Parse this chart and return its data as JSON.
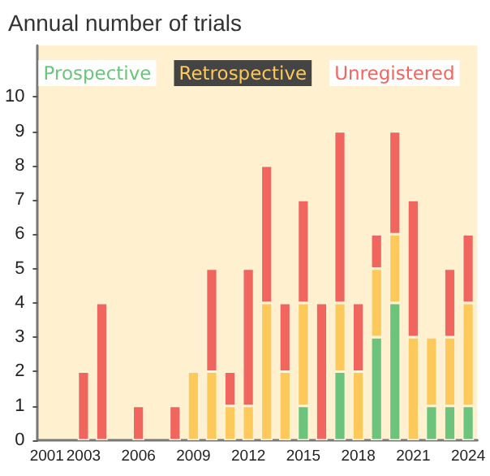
{
  "chart_data": {
    "type": "bar",
    "title": "Annual number of trials",
    "stacked": true,
    "legend": "top",
    "grid": false,
    "categories": [
      "2001",
      null,
      "2003",
      null,
      null,
      "2006",
      null,
      null,
      "2009",
      null,
      null,
      "2012",
      null,
      null,
      "2015",
      null,
      null,
      "2018",
      null,
      null,
      "2021",
      null,
      null,
      "2024"
    ],
    "ylim": [
      0,
      11.5
    ],
    "yticks": [
      0,
      1,
      2,
      3,
      4,
      5,
      6,
      7,
      8,
      9,
      10
    ],
    "series": [
      {
        "name": "Prospective",
        "color": "#6cc47c",
        "values": [
          null,
          null,
          null,
          null,
          null,
          null,
          null,
          null,
          null,
          null,
          null,
          null,
          null,
          null,
          1,
          null,
          2,
          null,
          3,
          4,
          null,
          1,
          1,
          1
        ]
      },
      {
        "name": "Retrospective",
        "color": "#fdc95b",
        "values": [
          null,
          null,
          null,
          null,
          null,
          null,
          null,
          null,
          2,
          2,
          1,
          1,
          4,
          2,
          3,
          null,
          2,
          2,
          2,
          2,
          3,
          2,
          2,
          3
        ]
      },
      {
        "name": "Unregistered",
        "color": "#f0665e",
        "values": [
          null,
          null,
          2,
          4,
          null,
          1,
          null,
          1,
          null,
          3,
          1,
          4,
          4,
          2,
          3,
          4,
          5,
          2,
          1,
          3,
          4,
          null,
          2,
          2
        ]
      }
    ]
  }
}
